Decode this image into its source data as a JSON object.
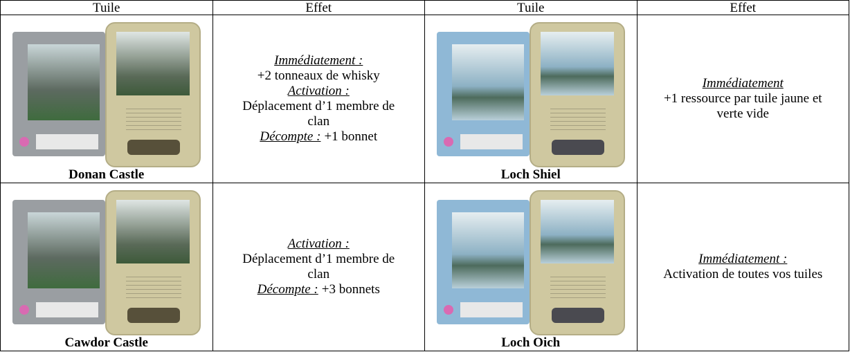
{
  "header": [
    "Tuile",
    "Effet",
    "Tuile",
    "Effet"
  ],
  "rows": [
    [
      {
        "tile": "Donan Castle",
        "effect": [
          {
            "label": "Immédiatement :"
          },
          {
            "text": "+2 tonneaux de whisky"
          },
          {
            "label": "Activation :"
          },
          {
            "text": "Déplacement d’1 membre de clan"
          },
          {
            "label": "Décompte :",
            "text": "+1 bonnet"
          }
        ]
      },
      {
        "tile": "Loch Shiel",
        "effect": [
          {
            "label": "Immédiatement"
          },
          {
            "text": "+1 ressource par tuile jaune et verte vide"
          }
        ]
      }
    ],
    [
      {
        "tile": "Cawdor Castle",
        "effect": [
          {
            "label": "Activation :"
          },
          {
            "text": "Déplacement d’1 membre de clan"
          },
          {
            "label": "Décompte :",
            "text": "+3 bonnets"
          }
        ]
      },
      {
        "tile": "Loch Oich",
        "effect": [
          {
            "label": "Immédiatement :"
          },
          {
            "text": "Activation de toutes vos tuiles"
          }
        ]
      }
    ]
  ]
}
